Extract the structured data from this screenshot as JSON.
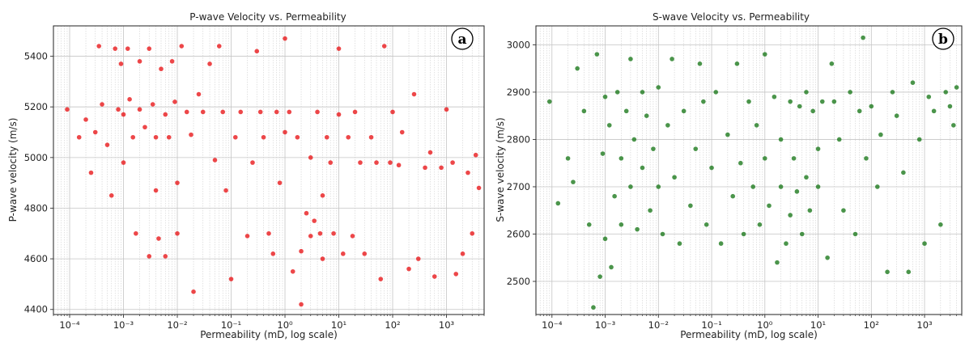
{
  "chart_data": [
    {
      "id": "a",
      "type": "scatter",
      "title": "P-wave Velocity vs. Permeability",
      "xlabel": "Permeability (mD, log scale)",
      "ylabel": "P-wave velocity (m/s)",
      "panel_label": "a",
      "x_scale": "log",
      "xlim": [
        5e-05,
        5000
      ],
      "ylim": [
        4380,
        5520
      ],
      "x_ticks": [
        0.0001,
        0.001,
        0.01,
        0.1,
        1,
        10,
        100,
        1000
      ],
      "x_tick_labels": [
        "10⁻⁴",
        "10⁻³",
        "10⁻²",
        "10⁻¹",
        "10⁰",
        "10¹",
        "10²",
        "10³"
      ],
      "y_ticks": [
        4400,
        4600,
        4800,
        5000,
        5200,
        5400
      ],
      "y_tick_labels": [
        "4400",
        "4600",
        "4800",
        "5000",
        "5200",
        "5400"
      ],
      "color": "#e8191c",
      "grid": true,
      "points": [
        [
          9e-05,
          5190
        ],
        [
          0.00015,
          5080
        ],
        [
          0.0002,
          5150
        ],
        [
          0.00025,
          4940
        ],
        [
          0.0003,
          5100
        ],
        [
          0.00035,
          5440
        ],
        [
          0.0004,
          5210
        ],
        [
          0.0005,
          5050
        ],
        [
          0.0006,
          4850
        ],
        [
          0.0007,
          5430
        ],
        [
          0.0008,
          5190
        ],
        [
          0.0009,
          5370
        ],
        [
          0.001,
          5170
        ],
        [
          0.001,
          4980
        ],
        [
          0.0012,
          5430
        ],
        [
          0.0013,
          5230
        ],
        [
          0.0015,
          5080
        ],
        [
          0.0017,
          4700
        ],
        [
          0.002,
          5190
        ],
        [
          0.002,
          5380
        ],
        [
          0.0025,
          5120
        ],
        [
          0.003,
          5430
        ],
        [
          0.003,
          4610
        ],
        [
          0.0035,
          5210
        ],
        [
          0.004,
          5080
        ],
        [
          0.004,
          4870
        ],
        [
          0.0045,
          4680
        ],
        [
          0.005,
          5350
        ],
        [
          0.006,
          5170
        ],
        [
          0.006,
          4610
        ],
        [
          0.007,
          5080
        ],
        [
          0.008,
          5380
        ],
        [
          0.009,
          5220
        ],
        [
          0.01,
          4900
        ],
        [
          0.01,
          4700
        ],
        [
          0.012,
          5440
        ],
        [
          0.015,
          5180
        ],
        [
          0.018,
          5090
        ],
        [
          0.02,
          4470
        ],
        [
          0.025,
          5250
        ],
        [
          0.03,
          5180
        ],
        [
          0.04,
          5370
        ],
        [
          0.05,
          4990
        ],
        [
          0.06,
          5440
        ],
        [
          0.07,
          5180
        ],
        [
          0.08,
          4870
        ],
        [
          0.1,
          4520
        ],
        [
          0.12,
          5080
        ],
        [
          0.15,
          5180
        ],
        [
          0.2,
          4690
        ],
        [
          0.25,
          4980
        ],
        [
          0.3,
          5420
        ],
        [
          0.35,
          5180
        ],
        [
          0.4,
          5080
        ],
        [
          0.5,
          4700
        ],
        [
          0.6,
          4620
        ],
        [
          0.7,
          5180
        ],
        [
          0.8,
          4900
        ],
        [
          1.0,
          5470
        ],
        [
          1.0,
          5100
        ],
        [
          1.2,
          5180
        ],
        [
          1.4,
          4550
        ],
        [
          1.7,
          5080
        ],
        [
          2.0,
          4630
        ],
        [
          2.0,
          4420
        ],
        [
          2.5,
          4780
        ],
        [
          3.0,
          4690
        ],
        [
          3.0,
          5000
        ],
        [
          3.5,
          4750
        ],
        [
          4.0,
          5180
        ],
        [
          4.5,
          4700
        ],
        [
          5.0,
          4850
        ],
        [
          5.0,
          4600
        ],
        [
          6.0,
          5080
        ],
        [
          7.0,
          4980
        ],
        [
          8.0,
          4700
        ],
        [
          10.0,
          5170
        ],
        [
          10.0,
          5430
        ],
        [
          12.0,
          4620
        ],
        [
          15.0,
          5080
        ],
        [
          18.0,
          4690
        ],
        [
          20.0,
          5180
        ],
        [
          25.0,
          4980
        ],
        [
          30.0,
          4620
        ],
        [
          40.0,
          5080
        ],
        [
          50.0,
          4980
        ],
        [
          60.0,
          4520
        ],
        [
          70.0,
          5440
        ],
        [
          90.0,
          4980
        ],
        [
          100.0,
          5180
        ],
        [
          130.0,
          4970
        ],
        [
          150.0,
          5100
        ],
        [
          200.0,
          4560
        ],
        [
          250.0,
          5250
        ],
        [
          300.0,
          4600
        ],
        [
          400.0,
          4960
        ],
        [
          500.0,
          5020
        ],
        [
          600.0,
          4530
        ],
        [
          800.0,
          4960
        ],
        [
          1000.0,
          5190
        ],
        [
          1300.0,
          4980
        ],
        [
          1500.0,
          4540
        ],
        [
          2000.0,
          4620
        ],
        [
          2500.0,
          4940
        ],
        [
          3000.0,
          4700
        ],
        [
          3500.0,
          5010
        ],
        [
          4000.0,
          4880
        ]
      ]
    },
    {
      "id": "b",
      "type": "scatter",
      "title": "S-wave Velocity vs. Permeability",
      "xlabel": "Permeability (mD, log scale)",
      "ylabel": "S-wave velocity (m/s)",
      "panel_label": "b",
      "x_scale": "log",
      "xlim": [
        5e-05,
        5000
      ],
      "ylim": [
        2430,
        3040
      ],
      "x_ticks": [
        0.0001,
        0.001,
        0.01,
        0.1,
        1,
        10,
        100,
        1000
      ],
      "x_tick_labels": [
        "10⁻⁴",
        "10⁻³",
        "10⁻²",
        "10⁻¹",
        "10⁰",
        "10¹",
        "10²",
        "10³"
      ],
      "y_ticks": [
        2500,
        2600,
        2700,
        2800,
        2900,
        3000
      ],
      "y_tick_labels": [
        "2500",
        "2600",
        "2700",
        "2800",
        "2900",
        "3000"
      ],
      "color": "#1e7a1e",
      "grid": true,
      "points": [
        [
          9e-05,
          2880
        ],
        [
          0.00013,
          2665
        ],
        [
          0.0002,
          2760
        ],
        [
          0.00025,
          2710
        ],
        [
          0.0003,
          2950
        ],
        [
          0.0004,
          2860
        ],
        [
          0.0005,
          2620
        ],
        [
          0.0006,
          2445
        ],
        [
          0.0007,
          2980
        ],
        [
          0.0008,
          2510
        ],
        [
          0.0009,
          2770
        ],
        [
          0.001,
          2890
        ],
        [
          0.001,
          2590
        ],
        [
          0.0012,
          2830
        ],
        [
          0.0013,
          2530
        ],
        [
          0.0015,
          2680
        ],
        [
          0.0017,
          2900
        ],
        [
          0.002,
          2760
        ],
        [
          0.002,
          2620
        ],
        [
          0.0025,
          2860
        ],
        [
          0.003,
          2970
        ],
        [
          0.003,
          2700
        ],
        [
          0.0035,
          2800
        ],
        [
          0.004,
          2610
        ],
        [
          0.005,
          2900
        ],
        [
          0.005,
          2740
        ],
        [
          0.006,
          2850
        ],
        [
          0.007,
          2650
        ],
        [
          0.008,
          2780
        ],
        [
          0.01,
          2910
        ],
        [
          0.01,
          2700
        ],
        [
          0.012,
          2600
        ],
        [
          0.015,
          2830
        ],
        [
          0.018,
          2970
        ],
        [
          0.02,
          2720
        ],
        [
          0.025,
          2580
        ],
        [
          0.03,
          2860
        ],
        [
          0.04,
          2660
        ],
        [
          0.05,
          2780
        ],
        [
          0.06,
          2960
        ],
        [
          0.07,
          2880
        ],
        [
          0.08,
          2620
        ],
        [
          0.1,
          2740
        ],
        [
          0.12,
          2900
        ],
        [
          0.15,
          2580
        ],
        [
          0.2,
          2810
        ],
        [
          0.25,
          2680
        ],
        [
          0.3,
          2960
        ],
        [
          0.35,
          2750
        ],
        [
          0.4,
          2600
        ],
        [
          0.5,
          2880
        ],
        [
          0.6,
          2700
        ],
        [
          0.7,
          2830
        ],
        [
          0.8,
          2620
        ],
        [
          1.0,
          2980
        ],
        [
          1.0,
          2760
        ],
        [
          1.2,
          2660
        ],
        [
          1.5,
          2890
        ],
        [
          1.7,
          2540
        ],
        [
          2.0,
          2800
        ],
        [
          2.0,
          2700
        ],
        [
          2.5,
          2580
        ],
        [
          3.0,
          2880
        ],
        [
          3.0,
          2640
        ],
        [
          3.5,
          2760
        ],
        [
          4.0,
          2690
        ],
        [
          4.5,
          2870
        ],
        [
          5.0,
          2600
        ],
        [
          6.0,
          2900
        ],
        [
          6.0,
          2720
        ],
        [
          7.0,
          2650
        ],
        [
          8.0,
          2860
        ],
        [
          10.0,
          2780
        ],
        [
          10.0,
          2700
        ],
        [
          12.0,
          2880
        ],
        [
          15.0,
          2550
        ],
        [
          18.0,
          2960
        ],
        [
          20.0,
          2880
        ],
        [
          25.0,
          2800
        ],
        [
          30.0,
          2650
        ],
        [
          40.0,
          2900
        ],
        [
          50.0,
          2600
        ],
        [
          60.0,
          2860
        ],
        [
          70.0,
          3015
        ],
        [
          80.0,
          2760
        ],
        [
          100.0,
          2870
        ],
        [
          130.0,
          2700
        ],
        [
          150.0,
          2810
        ],
        [
          200.0,
          2520
        ],
        [
          250.0,
          2900
        ],
        [
          300.0,
          2850
        ],
        [
          400.0,
          2730
        ],
        [
          500.0,
          2520
        ],
        [
          600.0,
          2920
        ],
        [
          800.0,
          2800
        ],
        [
          1000.0,
          2580
        ],
        [
          1200.0,
          2890
        ],
        [
          1500.0,
          2860
        ],
        [
          2000.0,
          2620
        ],
        [
          2500.0,
          2900
        ],
        [
          3000.0,
          2870
        ],
        [
          3500.0,
          2830
        ],
        [
          4000.0,
          2910
        ]
      ]
    }
  ]
}
